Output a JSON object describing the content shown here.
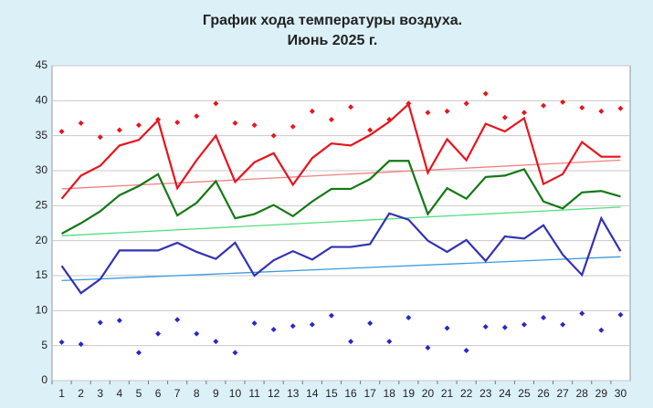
{
  "chart_data": {
    "type": "line",
    "title": "График хода температуры воздуха.",
    "subtitle": "Июнь 2025 г.",
    "categories": [
      1,
      2,
      3,
      4,
      5,
      6,
      7,
      8,
      9,
      10,
      11,
      12,
      13,
      14,
      15,
      16,
      17,
      18,
      19,
      20,
      21,
      22,
      23,
      24,
      25,
      26,
      27,
      28,
      29,
      30
    ],
    "ylim": [
      0,
      45
    ],
    "yticks": [
      0,
      5,
      10,
      15,
      20,
      25,
      30,
      35,
      40,
      45
    ],
    "grid": true,
    "series": [
      {
        "style": "line",
        "color": "#e8141e",
        "values": [
          26,
          29.3,
          30.7,
          33.6,
          34.4,
          37.2,
          27.5,
          31.5,
          35,
          28.4,
          31.2,
          32.5,
          28,
          31.8,
          33.9,
          33.6,
          35.1,
          37,
          39.5,
          29.7,
          34.5,
          31.5,
          36.7,
          35.6,
          37.5,
          28.1,
          29.5,
          34.1,
          32,
          32
        ]
      },
      {
        "style": "line",
        "color": "#147814",
        "values": [
          21,
          22.5,
          24.2,
          26.5,
          27.8,
          29.5,
          23.6,
          25.4,
          28.5,
          23.2,
          23.8,
          25.1,
          23.5,
          25.6,
          27.4,
          27.4,
          28.8,
          31.4,
          31.4,
          23.8,
          27.5,
          26,
          29.1,
          29.3,
          30.2,
          25.6,
          24.6,
          26.9,
          27.1,
          26.3
        ]
      },
      {
        "style": "line",
        "color": "#3232b4",
        "values": [
          16.4,
          12.5,
          14.5,
          18.6,
          18.6,
          18.6,
          19.7,
          18.4,
          17.4,
          19.7,
          15,
          17.2,
          18.5,
          17.3,
          19.1,
          19.1,
          19.5,
          23.9,
          23,
          20,
          18.4,
          20.1,
          17.1,
          20.6,
          20.3,
          22.2,
          18,
          15.1,
          23.2,
          18.5
        ]
      },
      {
        "style": "markers",
        "color": "#e8141e",
        "values": [
          35.6,
          36.8,
          34.8,
          35.8,
          36.5,
          37.3,
          36.9,
          37.8,
          39.6,
          36.8,
          36.5,
          35,
          36.3,
          38.5,
          37.3,
          39.1,
          35.8,
          37.3,
          39.6,
          38.3,
          38.5,
          39.6,
          41,
          37.6,
          38.3,
          39.3,
          39.8,
          39,
          38.5,
          38.9
        ]
      },
      {
        "style": "markers",
        "color": "#2828c8",
        "values": [
          5.5,
          5.2,
          8.3,
          8.6,
          4,
          6.7,
          8.7,
          6.7,
          5.6,
          4,
          8.2,
          7.3,
          7.8,
          8,
          9.3,
          5.6,
          8.2,
          5.6,
          9,
          4.7,
          7.5,
          4.3,
          7.7,
          7.6,
          8,
          9,
          8,
          9.6,
          7.2,
          9.4
        ]
      }
    ],
    "trends": [
      {
        "color": "#f08080",
        "values": [
          27.4,
          31.5
        ]
      },
      {
        "color": "#50e080",
        "values": [
          20.7,
          24.8
        ]
      },
      {
        "color": "#3c9be0",
        "values": [
          14.3,
          17.7
        ]
      }
    ]
  }
}
